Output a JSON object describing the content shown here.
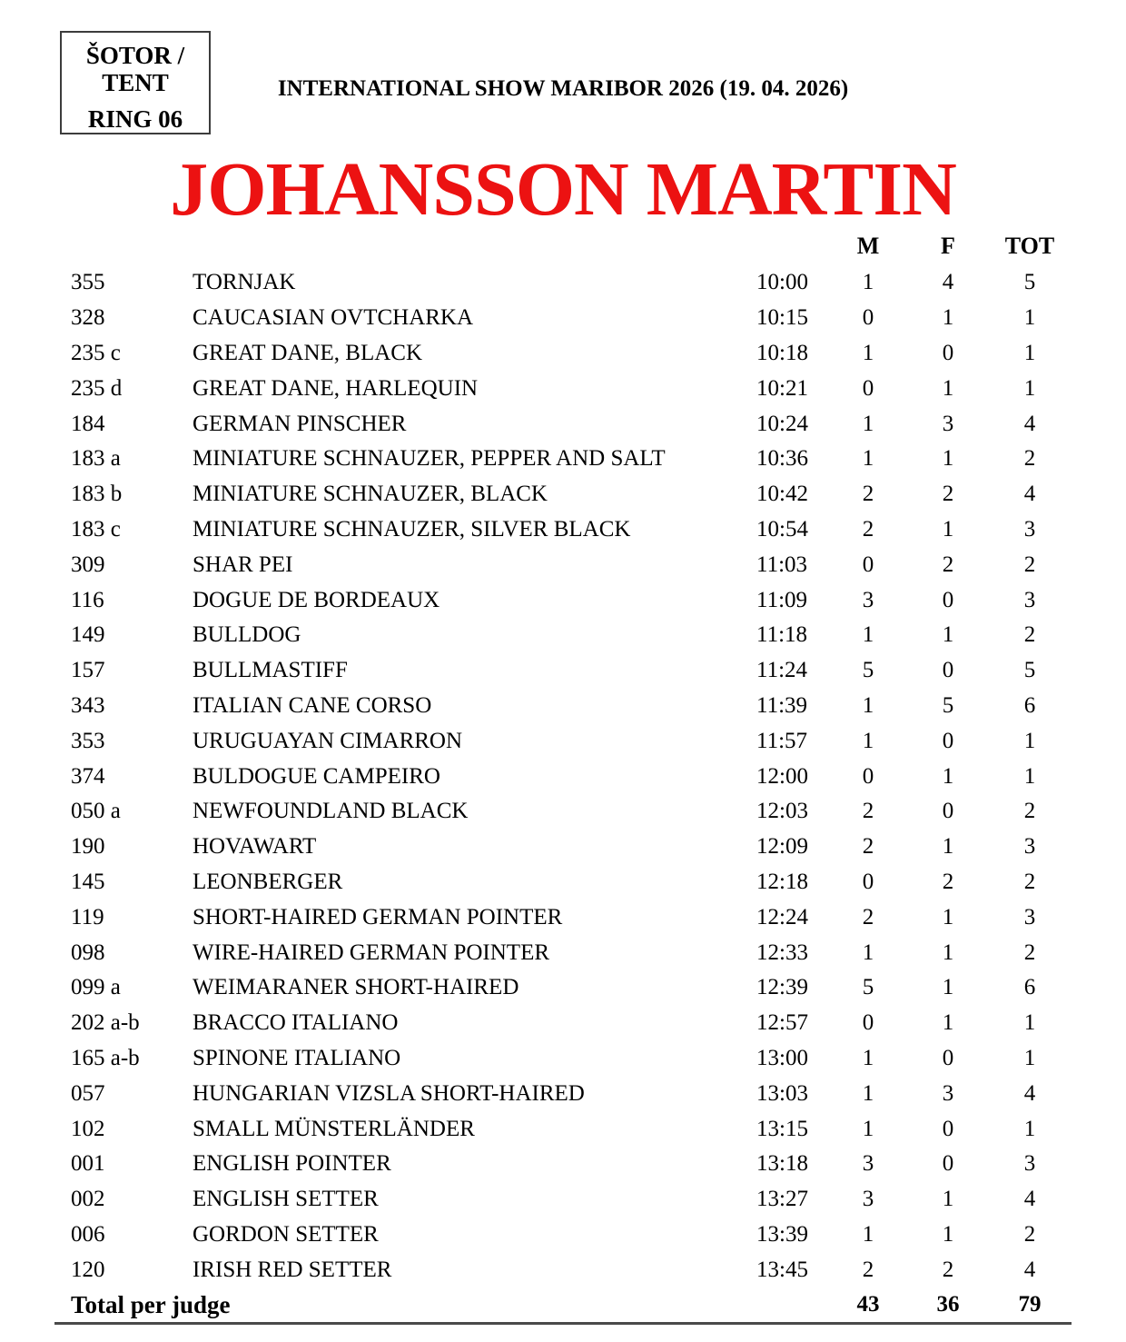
{
  "colors": {
    "judge_title": "#ec1212"
  },
  "header": {
    "tent_box": {
      "line1": "ŠOTOR /",
      "line2": "TENT",
      "line3": "RING 06"
    },
    "show_title": "INTERNATIONAL SHOW MARIBOR 2026 (19. 04. 2026)",
    "judge_name": "JOHANSSON MARTIN"
  },
  "table": {
    "columns": {
      "m": "M",
      "f": "F",
      "tot": "TOT"
    },
    "rows": [
      {
        "num": "355",
        "breed": "TORNJAK",
        "time": "10:00",
        "m": "1",
        "f": "4",
        "tot": "5"
      },
      {
        "num": "328",
        "breed": "CAUCASIAN OVTCHARKA",
        "time": "10:15",
        "m": "0",
        "f": "1",
        "tot": "1"
      },
      {
        "num": "235 c",
        "breed": "GREAT DANE, BLACK",
        "time": "10:18",
        "m": "1",
        "f": "0",
        "tot": "1"
      },
      {
        "num": "235 d",
        "breed": "GREAT DANE, HARLEQUIN",
        "time": "10:21",
        "m": "0",
        "f": "1",
        "tot": "1"
      },
      {
        "num": "184",
        "breed": "GERMAN PINSCHER",
        "time": "10:24",
        "m": "1",
        "f": "3",
        "tot": "4"
      },
      {
        "num": "183 a",
        "breed": "MINIATURE SCHNAUZER, PEPPER AND SALT",
        "time": "10:36",
        "m": "1",
        "f": "1",
        "tot": "2"
      },
      {
        "num": "183 b",
        "breed": "MINIATURE SCHNAUZER, BLACK",
        "time": "10:42",
        "m": "2",
        "f": "2",
        "tot": "4"
      },
      {
        "num": "183 c",
        "breed": "MINIATURE SCHNAUZER, SILVER BLACK",
        "time": "10:54",
        "m": "2",
        "f": "1",
        "tot": "3"
      },
      {
        "num": "309",
        "breed": "SHAR PEI",
        "time": "11:03",
        "m": "0",
        "f": "2",
        "tot": "2"
      },
      {
        "num": "116",
        "breed": "DOGUE DE BORDEAUX",
        "time": "11:09",
        "m": "3",
        "f": "0",
        "tot": "3"
      },
      {
        "num": "149",
        "breed": "BULLDOG",
        "time": "11:18",
        "m": "1",
        "f": "1",
        "tot": "2"
      },
      {
        "num": "157",
        "breed": "BULLMASTIFF",
        "time": "11:24",
        "m": "5",
        "f": "0",
        "tot": "5"
      },
      {
        "num": "343",
        "breed": "ITALIAN CANE CORSO",
        "time": "11:39",
        "m": "1",
        "f": "5",
        "tot": "6"
      },
      {
        "num": "353",
        "breed": "URUGUAYAN CIMARRON",
        "time": "11:57",
        "m": "1",
        "f": "0",
        "tot": "1"
      },
      {
        "num": "374",
        "breed": "BULDOGUE CAMPEIRO",
        "time": "12:00",
        "m": "0",
        "f": "1",
        "tot": "1"
      },
      {
        "num": "050 a",
        "breed": "NEWFOUNDLAND BLACK",
        "time": "12:03",
        "m": "2",
        "f": "0",
        "tot": "2"
      },
      {
        "num": "190",
        "breed": "HOVAWART",
        "time": "12:09",
        "m": "2",
        "f": "1",
        "tot": "3"
      },
      {
        "num": "145",
        "breed": "LEONBERGER",
        "time": "12:18",
        "m": "0",
        "f": "2",
        "tot": "2"
      },
      {
        "num": "119",
        "breed": "SHORT-HAIRED GERMAN POINTER",
        "time": "12:24",
        "m": "2",
        "f": "1",
        "tot": "3"
      },
      {
        "num": "098",
        "breed": "WIRE-HAIRED GERMAN POINTER",
        "time": "12:33",
        "m": "1",
        "f": "1",
        "tot": "2"
      },
      {
        "num": "099 a",
        "breed": "WEIMARANER SHORT-HAIRED",
        "time": "12:39",
        "m": "5",
        "f": "1",
        "tot": "6"
      },
      {
        "num": "202 a-b",
        "breed": "BRACCO ITALIANO",
        "time": "12:57",
        "m": "0",
        "f": "1",
        "tot": "1"
      },
      {
        "num": "165 a-b",
        "breed": "SPINONE ITALIANO",
        "time": "13:00",
        "m": "1",
        "f": "0",
        "tot": "1"
      },
      {
        "num": "057",
        "breed": "HUNGARIAN VIZSLA SHORT-HAIRED",
        "time": "13:03",
        "m": "1",
        "f": "3",
        "tot": "4"
      },
      {
        "num": "102",
        "breed": "SMALL MÜNSTERLÄNDER",
        "time": "13:15",
        "m": "1",
        "f": "0",
        "tot": "1"
      },
      {
        "num": "001",
        "breed": "ENGLISH POINTER",
        "time": "13:18",
        "m": "3",
        "f": "0",
        "tot": "3"
      },
      {
        "num": "002",
        "breed": "ENGLISH SETTER",
        "time": "13:27",
        "m": "3",
        "f": "1",
        "tot": "4"
      },
      {
        "num": "006",
        "breed": "GORDON SETTER",
        "time": "13:39",
        "m": "1",
        "f": "1",
        "tot": "2"
      },
      {
        "num": "120",
        "breed": "IRISH RED SETTER",
        "time": "13:45",
        "m": "2",
        "f": "2",
        "tot": "4"
      }
    ],
    "total": {
      "label": "Total per judge",
      "m": "43",
      "f": "36",
      "tot": "79"
    }
  }
}
